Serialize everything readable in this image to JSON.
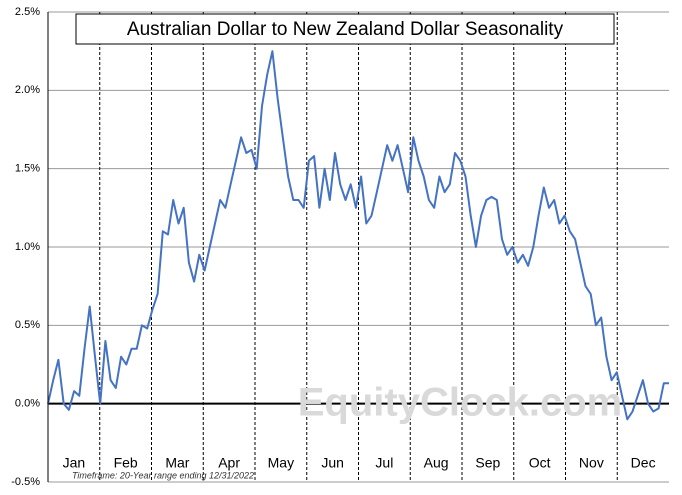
{
  "chart_data": {
    "type": "line",
    "title": "Australian Dollar to New Zealand Dollar Seasonality",
    "note": "Timeframe: 20-Year range ending 12/31/2022",
    "watermark": "EquityClock.com",
    "month_labels": [
      "Jan",
      "Feb",
      "Mar",
      "Apr",
      "May",
      "Jun",
      "Jul",
      "Aug",
      "Sep",
      "Oct",
      "Nov",
      "Dec"
    ],
    "ylim": [
      -0.5,
      2.5
    ],
    "yticks": [
      {
        "value": -0.5,
        "label": "-0.5%"
      },
      {
        "value": 0,
        "label": "0.0%"
      },
      {
        "value": 0.5,
        "label": "0.5%"
      },
      {
        "value": 1,
        "label": "1.0%"
      },
      {
        "value": 1.5,
        "label": "1.5%"
      },
      {
        "value": 2,
        "label": "2.0%"
      },
      {
        "value": 2.5,
        "label": "2.5%"
      }
    ],
    "grid": true,
    "series": [
      {
        "color": "#4472c4",
        "values": [
          0.0,
          0.15,
          0.28,
          0.0,
          -0.04,
          0.08,
          0.05,
          0.35,
          0.62,
          0.3,
          0.0,
          0.4,
          0.15,
          0.1,
          0.3,
          0.25,
          0.35,
          0.35,
          0.5,
          0.48,
          0.6,
          0.7,
          1.1,
          1.08,
          1.3,
          1.15,
          1.25,
          0.9,
          0.78,
          0.95,
          0.85,
          1.0,
          1.15,
          1.3,
          1.25,
          1.4,
          1.55,
          1.7,
          1.6,
          1.62,
          1.5,
          1.9,
          2.1,
          2.25,
          1.95,
          1.7,
          1.45,
          1.3,
          1.3,
          1.25,
          1.55,
          1.58,
          1.25,
          1.5,
          1.3,
          1.6,
          1.4,
          1.3,
          1.4,
          1.25,
          1.45,
          1.15,
          1.2,
          1.35,
          1.5,
          1.65,
          1.55,
          1.65,
          1.5,
          1.35,
          1.7,
          1.55,
          1.45,
          1.3,
          1.25,
          1.45,
          1.35,
          1.4,
          1.6,
          1.55,
          1.45,
          1.2,
          1.0,
          1.2,
          1.3,
          1.32,
          1.3,
          1.05,
          0.95,
          1.0,
          0.9,
          0.95,
          0.88,
          1.0,
          1.2,
          1.38,
          1.25,
          1.3,
          1.15,
          1.2,
          1.1,
          1.05,
          0.9,
          0.75,
          0.7,
          0.5,
          0.55,
          0.3,
          0.15,
          0.2,
          0.05,
          -0.1,
          -0.05,
          0.05,
          0.15,
          0.0,
          -0.05,
          -0.03,
          0.13,
          0.13
        ]
      }
    ]
  }
}
